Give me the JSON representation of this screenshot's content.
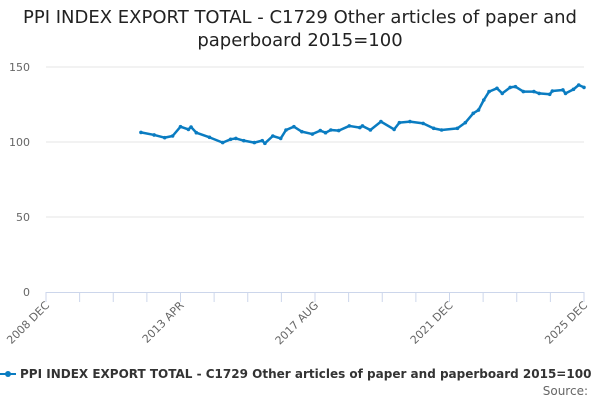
{
  "chart_data": {
    "type": "line",
    "title": "PPI INDEX EXPORT TOTAL - C1729 Other articles of paper and paperboard 2015=100",
    "xlabel": "",
    "ylabel": "",
    "ylim": [
      0,
      150
    ],
    "yticks": [
      0,
      50,
      100,
      150
    ],
    "xlim": [
      "2008-12",
      "2025-12"
    ],
    "xtick_labels": [
      "2008 DEC",
      "2013 APR",
      "2017 AUG",
      "2021 DEC",
      "2025 DEC"
    ],
    "grid": true,
    "legend_position": "bottom",
    "color": "#0a7cc1",
    "series": [
      {
        "name": "PPI INDEX EXPORT TOTAL - C1729 Other articles of paper and paperboard 2015=100",
        "points": [
          [
            "2011-12",
            106.4
          ],
          [
            "2012-05",
            104.7
          ],
          [
            "2012-09",
            102.9
          ],
          [
            "2012-12",
            104
          ],
          [
            "2013-03",
            110.2
          ],
          [
            "2013-06",
            108.4
          ],
          [
            "2013-07",
            110
          ],
          [
            "2013-09",
            106.2
          ],
          [
            "2014-02",
            103.1
          ],
          [
            "2014-07",
            99.6
          ],
          [
            "2014-10",
            101.8
          ],
          [
            "2014-12",
            102.4
          ],
          [
            "2015-03",
            100.9
          ],
          [
            "2015-07",
            99.6
          ],
          [
            "2015-10",
            100.9
          ],
          [
            "2015-11",
            99.1
          ],
          [
            "2016-02",
            104
          ],
          [
            "2016-05",
            102.4
          ],
          [
            "2016-07",
            108
          ],
          [
            "2016-10",
            110.2
          ],
          [
            "2017-01",
            106.9
          ],
          [
            "2017-05",
            105.3
          ],
          [
            "2017-08",
            107.6
          ],
          [
            "2017-10",
            106.2
          ],
          [
            "2017-12",
            108
          ],
          [
            "2018-03",
            107.6
          ],
          [
            "2018-07",
            110.7
          ],
          [
            "2018-11",
            109.6
          ],
          [
            "2018-12",
            110.7
          ],
          [
            "2019-03",
            108
          ],
          [
            "2019-07",
            113.6
          ],
          [
            "2019-12",
            108.4
          ],
          [
            "2020-02",
            112.9
          ],
          [
            "2020-06",
            113.6
          ],
          [
            "2020-11",
            112.4
          ],
          [
            "2021-03",
            109.1
          ],
          [
            "2021-06",
            108
          ],
          [
            "2021-12",
            109.1
          ],
          [
            "2022-03",
            112.9
          ],
          [
            "2022-06",
            119.1
          ],
          [
            "2022-08",
            121.3
          ],
          [
            "2022-10",
            128
          ],
          [
            "2022-12",
            133.6
          ],
          [
            "2023-03",
            135.8
          ],
          [
            "2023-05",
            132.4
          ],
          [
            "2023-08",
            136.4
          ],
          [
            "2023-10",
            136.9
          ],
          [
            "2024-01",
            133.6
          ],
          [
            "2024-05",
            133.6
          ],
          [
            "2024-07",
            132.4
          ],
          [
            "2024-11",
            131.8
          ],
          [
            "2024-12",
            134
          ],
          [
            "2025-04",
            134.7
          ],
          [
            "2025-05",
            132.4
          ],
          [
            "2025-08",
            135.1
          ],
          [
            "2025-10",
            138
          ],
          [
            "2025-12",
            136.4
          ]
        ]
      }
    ]
  },
  "source_label": "Source:"
}
